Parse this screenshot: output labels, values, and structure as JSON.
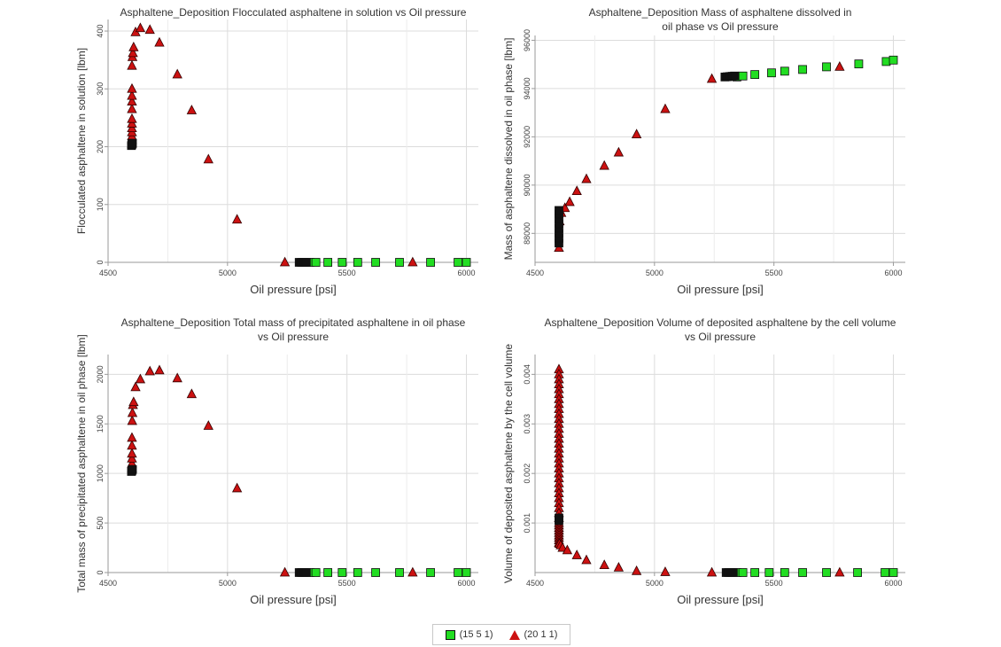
{
  "colors": {
    "series_green": "#22dd22",
    "series_red": "#cc1111",
    "grid": "#dcdcdc",
    "axis": "#9a9a9a",
    "marker_edge": "#111111"
  },
  "legend": {
    "items": [
      {
        "label": "(15 5 1)",
        "marker": "square",
        "color": "#22dd22"
      },
      {
        "label": "(20 1 1)",
        "marker": "triangle",
        "color": "#cc1111"
      }
    ],
    "placement": "bottom-center"
  },
  "chart_data": [
    {
      "type": "scatter",
      "title": "Asphaltene_Deposition Flocculated asphaltene in solution vs Oil pressure",
      "xlabel": "Oil pressure [psi]",
      "ylabel": "Flocculated asphaltene in solution [lbm]",
      "xlim": [
        4500,
        6050
      ],
      "ylim": [
        0,
        420
      ],
      "xticks": [
        4500,
        5000,
        5500,
        6000
      ],
      "yticks": [
        0,
        100,
        200,
        300,
        400
      ],
      "grid": true,
      "series": [
        {
          "name": "(15 5 1)",
          "marker": "square",
          "color": "#22dd22",
          "x": [
            5345,
            5370,
            5420,
            5480,
            5545,
            5620,
            5720,
            5850,
            5965,
            6000
          ],
          "y": [
            0,
            0,
            0,
            0,
            0,
            0,
            0,
            0,
            0,
            0
          ]
        },
        {
          "name": "(20 1 1)",
          "marker": "triangle",
          "color": "#cc1111",
          "x": [
            4600,
            4600,
            4600,
            4600,
            4600,
            4600,
            4600,
            4600,
            4600,
            4600,
            4600,
            4600,
            4602,
            4604,
            4607,
            4615,
            4635,
            4675,
            4715,
            4790,
            4850,
            4920,
            5040,
            5240,
            5775
          ],
          "y": [
            205,
            212,
            218,
            225,
            232,
            240,
            248,
            265,
            278,
            288,
            300,
            340,
            355,
            362,
            372,
            398,
            405,
            402,
            380,
            325,
            263,
            178,
            74,
            0,
            0
          ]
        },
        {
          "name": "",
          "marker": "square",
          "color": "#111111",
          "x": [
            4598,
            4600,
            4602,
            5300,
            5310,
            5320,
            5330
          ],
          "y": [
            202,
            204,
            206,
            0,
            0,
            0,
            0
          ]
        }
      ]
    },
    {
      "type": "scatter",
      "title": "Asphaltene_Deposition Mass of asphaltene dissolved in oil phase vs Oil pressure",
      "xlabel": "Oil pressure [psi]",
      "ylabel": "Mass of asphaltene dissolved in oil phase [lbm]",
      "xlim": [
        4500,
        6050
      ],
      "ylim": [
        86800,
        96200
      ],
      "xticks": [
        4500,
        5000,
        5500,
        6000
      ],
      "yticks": [
        88000,
        90000,
        92000,
        94000,
        96000
      ],
      "grid": true,
      "series": [
        {
          "name": "(15 5 1)",
          "marker": "square",
          "color": "#22dd22",
          "x": [
            5345,
            5370,
            5420,
            5490,
            5545,
            5620,
            5720,
            5855,
            5970,
            6000
          ],
          "y": [
            94480,
            94520,
            94580,
            94650,
            94720,
            94790,
            94900,
            95020,
            95120,
            95180
          ]
        },
        {
          "name": "(20 1 1)",
          "marker": "triangle",
          "color": "#cc1111",
          "x": [
            4600,
            4603,
            4610,
            4625,
            4645,
            4675,
            4715,
            4790,
            4850,
            4925,
            5045,
            5240,
            5775
          ],
          "y": [
            87400,
            88500,
            88850,
            89050,
            89300,
            89750,
            90250,
            90800,
            91350,
            92100,
            93150,
            94400,
            94900
          ]
        },
        {
          "name": "",
          "marker": "square",
          "color": "#111111",
          "x": [
            4600,
            4600,
            4600,
            4600,
            4600,
            4600,
            4600,
            4600,
            5295,
            5305,
            5315,
            5325,
            5335
          ],
          "y": [
            87600,
            87800,
            88000,
            88200,
            88400,
            88600,
            88800,
            88950,
            94480,
            94490,
            94500,
            94510,
            94520
          ]
        }
      ]
    },
    {
      "type": "scatter",
      "title": "Asphaltene_Deposition Total mass of precipitated asphaltene in oil phase vs Oil pressure",
      "xlabel": "Oil pressure [psi]",
      "ylabel": "Total mass of precipitated asphaltene in oil phase [lbm]",
      "xlim": [
        4500,
        6050
      ],
      "ylim": [
        0,
        2200
      ],
      "xticks": [
        4500,
        5000,
        5500,
        6000
      ],
      "yticks": [
        0,
        500,
        1000,
        1500,
        2000
      ],
      "grid": true,
      "series": [
        {
          "name": "(15 5 1)",
          "marker": "square",
          "color": "#22dd22",
          "x": [
            5345,
            5370,
            5420,
            5480,
            5545,
            5620,
            5720,
            5850,
            5965,
            6000
          ],
          "y": [
            0,
            0,
            0,
            0,
            0,
            0,
            0,
            0,
            0,
            0
          ]
        },
        {
          "name": "(20 1 1)",
          "marker": "triangle",
          "color": "#cc1111",
          "x": [
            4600,
            4600,
            4600,
            4600,
            4600,
            4600,
            4601,
            4602,
            4604,
            4607,
            4615,
            4635,
            4675,
            4715,
            4790,
            4850,
            4920,
            5040,
            5240,
            5775
          ],
          "y": [
            1050,
            1100,
            1150,
            1200,
            1280,
            1360,
            1530,
            1610,
            1690,
            1720,
            1870,
            1950,
            2030,
            2040,
            1960,
            1800,
            1480,
            850,
            0,
            0
          ]
        },
        {
          "name": "",
          "marker": "square",
          "color": "#111111",
          "x": [
            4598,
            4600,
            4602,
            5300,
            5310,
            5320,
            5330
          ],
          "y": [
            1020,
            1030,
            1040,
            0,
            0,
            0,
            0
          ]
        }
      ]
    },
    {
      "type": "scatter",
      "title": "Asphaltene_Deposition Volume of deposited asphaltene by the cell volume vs Oil pressure",
      "xlabel": "Oil pressure [psi]",
      "ylabel": "Volume of deposited asphaltene by the cell volume",
      "xlim": [
        4500,
        6050
      ],
      "ylim": [
        0,
        0.0044
      ],
      "xticks": [
        4500,
        5000,
        5500,
        6000
      ],
      "yticks": [
        0.001,
        0.002,
        0.003,
        0.004
      ],
      "grid": true,
      "series": [
        {
          "name": "(15 5 1)",
          "marker": "square",
          "color": "#22dd22",
          "x": [
            5345,
            5370,
            5420,
            5480,
            5545,
            5620,
            5720,
            5850,
            5965,
            6000
          ],
          "y": [
            0,
            0,
            0,
            0,
            0,
            0,
            0,
            0,
            0,
            0
          ]
        },
        {
          "name": "(20 1 1)",
          "marker": "triangle",
          "color": "#cc1111",
          "x": [
            4600,
            4600,
            4600,
            4600,
            4600,
            4600,
            4600,
            4600,
            4600,
            4600,
            4600,
            4600,
            4600,
            4600,
            4600,
            4600,
            4600,
            4600,
            4600,
            4600,
            4600,
            4600,
            4600,
            4600,
            4600,
            4600,
            4600,
            4600,
            4600,
            4600,
            4600,
            4600,
            4600,
            4600,
            4600,
            4600,
            4600,
            4600,
            4600,
            4600,
            4602,
            4607,
            4615,
            4635,
            4675,
            4715,
            4790,
            4850,
            4925,
            5045,
            5240,
            5775
          ],
          "y": [
            0.0041,
            0.004,
            0.0039,
            0.0038,
            0.0037,
            0.0036,
            0.0035,
            0.0034,
            0.0033,
            0.0032,
            0.0031,
            0.003,
            0.0029,
            0.0028,
            0.0027,
            0.0026,
            0.0025,
            0.0024,
            0.0023,
            0.0022,
            0.0021,
            0.002,
            0.0019,
            0.0018,
            0.0017,
            0.0016,
            0.0015,
            0.0014,
            0.0013,
            0.0012,
            0.0011,
            0.001,
            0.00095,
            0.0009,
            0.00085,
            0.0008,
            0.00075,
            0.0007,
            0.00065,
            0.0006,
            0.00058,
            0.00055,
            0.0005,
            0.00045,
            0.00035,
            0.00025,
            0.00015,
            0.0001,
            3e-05,
            1e-05,
            0,
            0
          ]
        },
        {
          "name": "",
          "marker": "square",
          "color": "#111111",
          "x": [
            4600,
            4600,
            5300,
            5310,
            5320,
            5330
          ],
          "y": [
            0.00105,
            0.0011,
            0,
            0,
            0,
            0
          ]
        }
      ]
    }
  ]
}
